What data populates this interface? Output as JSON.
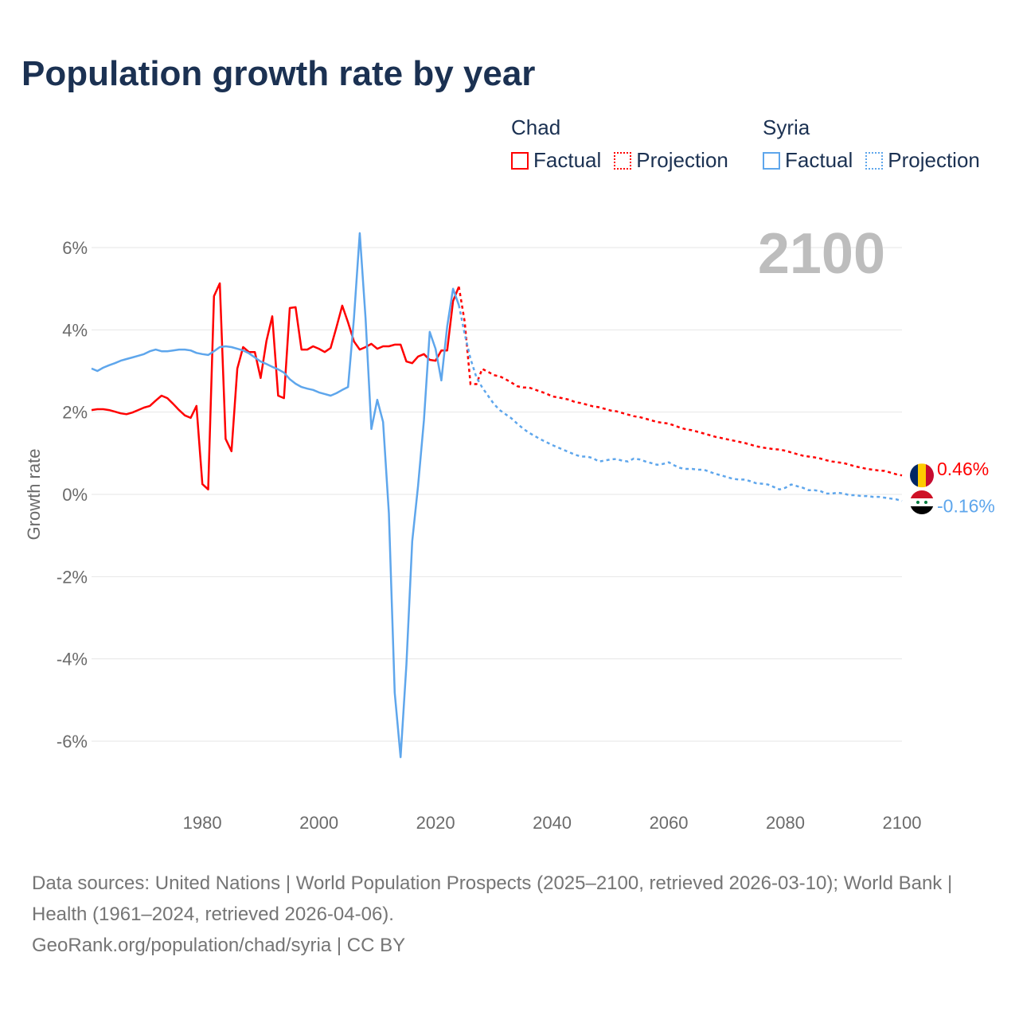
{
  "chart_data": {
    "type": "line",
    "title": "Population growth rate by year",
    "ylabel": "Growth rate",
    "xlabel": "",
    "xlim": [
      1961,
      2100
    ],
    "ylim": [
      -7,
      7
    ],
    "x_ticks": [
      1980,
      2000,
      2020,
      2040,
      2060,
      2080,
      2100
    ],
    "x_tick_labels": [
      "1980",
      "2000",
      "2020",
      "2040",
      "2060",
      "2080",
      "2100"
    ],
    "y_ticks": [
      6,
      4,
      2,
      0,
      -2,
      -4,
      -6
    ],
    "y_tick_labels": [
      "6%",
      "4%",
      "2%",
      "0%",
      "-2%",
      "-4%",
      "-6%"
    ],
    "grid": true,
    "current_year": "2100",
    "legend": {
      "placement": "top-right",
      "groups": [
        {
          "name": "Chad",
          "items": [
            "Factual",
            "Projection"
          ]
        },
        {
          "name": "Syria",
          "items": [
            "Factual",
            "Projection"
          ]
        }
      ]
    },
    "series": [
      {
        "name": "Chad",
        "color": "#ff0000",
        "end_label": "0.46%",
        "factual": {
          "start_year": 1961,
          "values": [
            2.05,
            2.07,
            2.07,
            2.05,
            2.01,
            1.97,
            1.95,
            1.99,
            2.05,
            2.11,
            2.15,
            2.28,
            2.4,
            2.34,
            2.2,
            2.05,
            1.92,
            1.86,
            2.15,
            0.25,
            0.12,
            4.82,
            5.13,
            1.35,
            1.05,
            3.06,
            3.58,
            3.46,
            3.46,
            2.83,
            3.73,
            4.33,
            2.4,
            2.34,
            4.53,
            4.55,
            3.52,
            3.52,
            3.6,
            3.54,
            3.46,
            3.56,
            4.06,
            4.59,
            4.18,
            3.72,
            3.52,
            3.58,
            3.66,
            3.54,
            3.6,
            3.6,
            3.64,
            3.64,
            3.23,
            3.19,
            3.35,
            3.41,
            3.27,
            3.25,
            3.5,
            3.5,
            4.7,
            5.05
          ]
        },
        "projection": {
          "start_year": 2024,
          "values": [
            5.05,
            4.2,
            2.68,
            2.68,
            3.05,
            2.98,
            2.9,
            2.87,
            2.8,
            2.72,
            2.63,
            2.6,
            2.6,
            2.55,
            2.5,
            2.45,
            2.38,
            2.36,
            2.33,
            2.3,
            2.24,
            2.22,
            2.18,
            2.14,
            2.12,
            2.08,
            2.04,
            2.02,
            1.98,
            1.94,
            1.9,
            1.88,
            1.84,
            1.8,
            1.76,
            1.74,
            1.72,
            1.67,
            1.62,
            1.58,
            1.56,
            1.52,
            1.48,
            1.44,
            1.4,
            1.37,
            1.34,
            1.31,
            1.28,
            1.25,
            1.21,
            1.17,
            1.14,
            1.12,
            1.1,
            1.09,
            1.06,
            1.02,
            0.98,
            0.94,
            0.92,
            0.9,
            0.87,
            0.83,
            0.8,
            0.78,
            0.76,
            0.72,
            0.68,
            0.65,
            0.62,
            0.6,
            0.58,
            0.57,
            0.53,
            0.49,
            0.46
          ]
        }
      },
      {
        "name": "Syria",
        "color": "#5ea6ec",
        "end_label": "-0.16%",
        "factual": {
          "start_year": 1961,
          "values": [
            3.06,
            3.0,
            3.08,
            3.14,
            3.19,
            3.25,
            3.29,
            3.33,
            3.37,
            3.41,
            3.48,
            3.52,
            3.48,
            3.48,
            3.5,
            3.52,
            3.52,
            3.5,
            3.44,
            3.41,
            3.39,
            3.48,
            3.58,
            3.6,
            3.58,
            3.54,
            3.5,
            3.43,
            3.33,
            3.23,
            3.17,
            3.1,
            3.04,
            2.96,
            2.8,
            2.69,
            2.61,
            2.57,
            2.54,
            2.48,
            2.44,
            2.4,
            2.46,
            2.54,
            2.61,
            4.28,
            6.35,
            4.28,
            1.59,
            2.3,
            1.76,
            -0.46,
            -4.82,
            -6.39,
            -4.14,
            -1.14,
            0.2,
            1.8,
            3.95,
            3.54,
            2.77,
            4.08,
            5.0,
            4.6
          ]
        },
        "projection": {
          "start_year": 2024,
          "values": [
            4.6,
            3.9,
            3.3,
            2.85,
            2.6,
            2.4,
            2.2,
            2.05,
            1.95,
            1.85,
            1.72,
            1.6,
            1.5,
            1.42,
            1.34,
            1.27,
            1.2,
            1.14,
            1.08,
            1.02,
            0.96,
            0.92,
            0.92,
            0.88,
            0.8,
            0.82,
            0.85,
            0.86,
            0.82,
            0.8,
            0.87,
            0.85,
            0.8,
            0.76,
            0.72,
            0.74,
            0.78,
            0.7,
            0.64,
            0.62,
            0.62,
            0.6,
            0.6,
            0.55,
            0.5,
            0.46,
            0.42,
            0.38,
            0.36,
            0.36,
            0.32,
            0.27,
            0.26,
            0.24,
            0.18,
            0.12,
            0.16,
            0.24,
            0.2,
            0.16,
            0.1,
            0.1,
            0.08,
            0.02,
            0.02,
            0.04,
            0.02,
            -0.02,
            -0.02,
            -0.04,
            -0.04,
            -0.06,
            -0.06,
            -0.08,
            -0.1,
            -0.12,
            -0.16
          ]
        }
      }
    ]
  },
  "footer": {
    "sources": "Data sources: United Nations | World Population Prospects (2025–2100, retrieved 2026-03-10); World Bank | Health (1961–2024, retrieved 2026-04-06).",
    "credit": "GeoRank.org/population/chad/syria | CC BY"
  }
}
